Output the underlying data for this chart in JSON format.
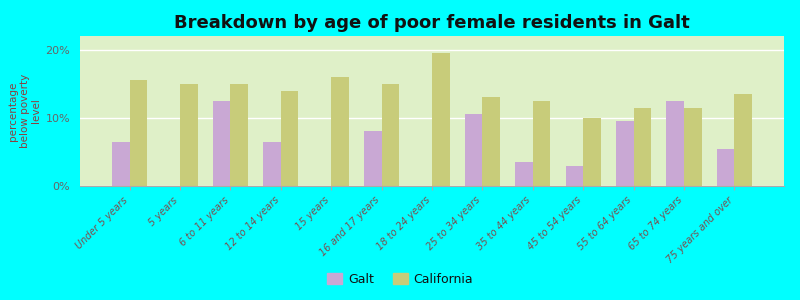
{
  "title": "Breakdown by age of poor female residents in Galt",
  "categories": [
    "Under 5 years",
    "5 years",
    "6 to 11 years",
    "12 to 14 years",
    "15 years",
    "16 and 17 years",
    "18 to 24 years",
    "25 to 34 years",
    "35 to 44 years",
    "45 to 54 years",
    "55 to 64 years",
    "65 to 74 years",
    "75 years and over"
  ],
  "galt_values": [
    6.5,
    0,
    12.5,
    6.5,
    0,
    8.0,
    0,
    10.5,
    3.5,
    3.0,
    9.5,
    12.5,
    5.5
  ],
  "california_values": [
    15.5,
    15.0,
    15.0,
    14.0,
    16.0,
    15.0,
    19.5,
    13.0,
    12.5,
    10.0,
    11.5,
    11.5,
    13.5
  ],
  "galt_color": "#c9a8d4",
  "california_color": "#c8cc7a",
  "background_color_top": "#dff0c8",
  "background_color_bottom": "#f0f8e8",
  "outer_background": "#00ffff",
  "ylabel": "percentage\nbelow poverty\nlevel",
  "yticks": [
    0,
    10,
    20
  ],
  "yticklabels": [
    "0%",
    "10%",
    "20%"
  ],
  "ylim": [
    0,
    22
  ],
  "bar_width": 0.35,
  "legend_labels": [
    "Galt",
    "California"
  ],
  "title_fontsize": 13,
  "axis_label_fontsize": 7.5,
  "tick_fontsize": 7.0
}
